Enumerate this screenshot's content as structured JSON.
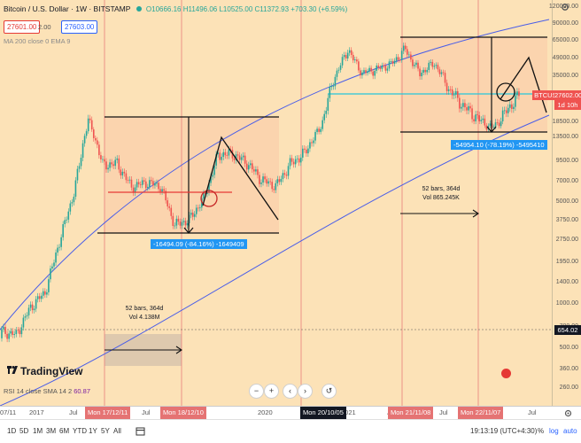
{
  "header": {
    "symbol": "Bitcoin / U.S. Dollar · 1W · BITSTAMP",
    "ohlc": "O10666.16 H11496.06 L10525.00 C11372.93 +703.30 (+6.59%)"
  },
  "price_boxes": {
    "sell": "27601.00",
    "spread": "2.00",
    "buy": "27603.00"
  },
  "indicators": {
    "ma": "MA 200 close 0 EMA 9",
    "rsi_label": "RSI 14 close SMA 14 2",
    "rsi_value": "60.87"
  },
  "logo": {
    "text": "TradingView"
  },
  "controls": {
    "minus": "−",
    "plus": "+",
    "left": "‹",
    "right": "›",
    "reset": "↺"
  },
  "price_axis": {
    "ticks": [
      "120000.00",
      "90000.00",
      "65000.00",
      "49000.00",
      "35000.00",
      "27000.00",
      "18500.00",
      "13500.00",
      "9500.00",
      "7000.00",
      "5000.00",
      "3750.00",
      "2750.00",
      "1950.00",
      "1400.00",
      "1000.00",
      "700.00",
      "500.00",
      "360.00",
      "260.00"
    ],
    "symbol_label": "BTCUSD",
    "current_price": "27602.00",
    "countdown": "1d 10h",
    "cursor_price": "654.02"
  },
  "time_axis": {
    "ticks": [
      "07/11",
      "2017",
      "Jul",
      "Jul",
      "2020",
      "Jul",
      "2021",
      "Jul",
      "Jul",
      "Jul"
    ],
    "markers": [
      "Mon 17/12/11",
      "Mon 18/12/10",
      "Mon 20/10/05",
      "Mon 21/11/08",
      "Mon 22/11/07"
    ]
  },
  "measurements": {
    "drop1": "-16494.09 (-84.16%) -1649409",
    "drop2": "-54954.10 (-78.19%) -5495410",
    "bars1_count": "52 bars, 364d",
    "bars1_vol": "Vol 4.138M",
    "bars2_count": "52 bars, 364d",
    "bars2_vol": "Vol 865.245K"
  },
  "bottom_bar": {
    "timeframes": [
      "1D",
      "5D",
      "1M",
      "3M",
      "6M",
      "YTD",
      "1Y",
      "5Y",
      "All"
    ],
    "clock": "19:13:19 (UTC+4:30)",
    "opt_percent": "%",
    "opt_log": "log",
    "opt_auto": "auto"
  },
  "colors": {
    "background": "#fce2b7",
    "up": "#26a69a",
    "down": "#ef5350",
    "channel": "#4a5ee8",
    "current_price": "#ef5350",
    "measure_label": "#2196f3"
  },
  "chart_data": {
    "type": "candlestick",
    "title": "Bitcoin / U.S. Dollar · 1W · BITSTAMP",
    "scale": "log",
    "x": [
      "2016-07",
      "2016-10",
      "2017-01",
      "2017-04",
      "2017-07",
      "2017-10",
      "2017-12",
      "2018-02",
      "2018-04",
      "2018-06",
      "2018-08",
      "2018-10",
      "2018-12",
      "2019-02",
      "2019-04",
      "2019-06",
      "2019-08",
      "2019-10",
      "2019-12",
      "2020-03",
      "2020-06",
      "2020-09",
      "2020-11",
      "2021-01",
      "2021-03",
      "2021-05",
      "2021-07",
      "2021-09",
      "2021-11",
      "2022-01",
      "2022-03",
      "2022-05",
      "2022-07",
      "2022-09",
      "2022-11",
      "2023-01",
      "2023-03"
    ],
    "close": [
      650,
      620,
      950,
      1200,
      2700,
      5800,
      19000,
      9000,
      9200,
      6400,
      6900,
      6500,
      3500,
      3800,
      5300,
      10500,
      10600,
      9300,
      7200,
      6500,
      9100,
      10700,
      15600,
      33000,
      57000,
      37000,
      40000,
      44000,
      57000,
      37000,
      45000,
      29000,
      23000,
      19500,
      16500,
      21500,
      27600
    ],
    "ylim": [
      260,
      120000
    ],
    "annotations": [
      "-16494.09 (-84.16%) -1649409",
      "-54954.10 (-78.19%) -5495410",
      "52 bars, 364d · Vol 4.138M",
      "52 bars, 364d · Vol 865.245K"
    ]
  }
}
